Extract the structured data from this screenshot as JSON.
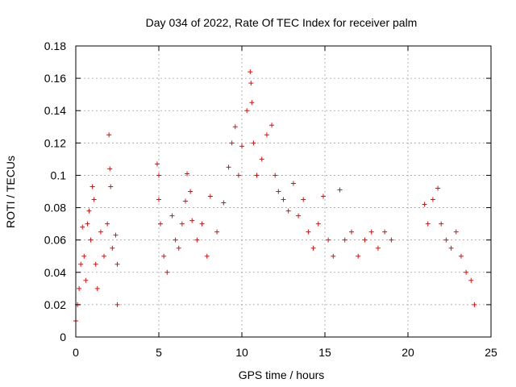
{
  "chart_data": {
    "type": "scatter",
    "title": "Day 034 of 2022, Rate Of TEC Index for receiver palm",
    "xlabel": "GPS time / hours",
    "ylabel": "ROTI / TECUs",
    "xlim": [
      0,
      25
    ],
    "ylim": [
      0,
      0.18
    ],
    "xticks": [
      "0",
      "5",
      "10",
      "15",
      "20",
      "25"
    ],
    "yticks": [
      "0",
      "0.02",
      "0.04",
      "0.06",
      "0.08",
      "0.1",
      "0.12",
      "0.14",
      "0.16",
      "0.18"
    ],
    "xtick_values": [
      0,
      5,
      10,
      15,
      20,
      25
    ],
    "ytick_values": [
      0,
      0.02,
      0.04,
      0.06,
      0.08,
      0.1,
      0.12,
      0.14,
      0.16,
      0.18
    ],
    "grid": true,
    "marker": "+",
    "color": "#ff0000",
    "series": [
      {
        "points": [
          [
            0.0,
            0.01
          ],
          [
            0.1,
            0.02
          ],
          [
            0.2,
            0.03
          ],
          [
            0.3,
            0.045
          ],
          [
            0.4,
            0.068
          ],
          [
            0.5,
            0.05
          ],
          [
            0.6,
            0.035
          ],
          [
            0.7,
            0.07
          ],
          [
            0.8,
            0.078
          ],
          [
            0.9,
            0.06
          ],
          [
            1.0,
            0.093
          ],
          [
            1.1,
            0.085
          ],
          [
            1.2,
            0.045
          ],
          [
            1.3,
            0.03
          ],
          [
            1.5,
            0.065
          ],
          [
            1.7,
            0.05
          ],
          [
            1.9,
            0.07
          ],
          [
            2.0,
            0.125
          ],
          [
            2.05,
            0.104
          ],
          [
            2.1,
            0.093
          ],
          [
            2.2,
            0.055
          ],
          [
            2.4,
            0.063
          ],
          [
            2.5,
            0.045
          ],
          [
            2.5,
            0.02
          ],
          [
            4.9,
            0.107
          ],
          [
            5.0,
            0.1
          ],
          [
            5.0,
            0.085
          ],
          [
            5.1,
            0.07
          ],
          [
            5.3,
            0.05
          ],
          [
            5.5,
            0.04
          ],
          [
            5.8,
            0.075
          ],
          [
            6.0,
            0.06
          ],
          [
            6.2,
            0.055
          ],
          [
            6.4,
            0.07
          ],
          [
            6.6,
            0.084
          ],
          [
            6.7,
            0.101
          ],
          [
            6.9,
            0.09
          ],
          [
            7.0,
            0.072
          ],
          [
            7.3,
            0.06
          ],
          [
            7.6,
            0.07
          ],
          [
            7.9,
            0.05
          ],
          [
            8.1,
            0.087
          ],
          [
            8.5,
            0.065
          ],
          [
            8.9,
            0.083
          ],
          [
            9.2,
            0.105
          ],
          [
            9.4,
            0.12
          ],
          [
            9.6,
            0.13
          ],
          [
            9.8,
            0.1
          ],
          [
            10.0,
            0.118
          ],
          [
            10.3,
            0.14
          ],
          [
            10.5,
            0.164
          ],
          [
            10.55,
            0.157
          ],
          [
            10.6,
            0.145
          ],
          [
            10.7,
            0.12
          ],
          [
            10.9,
            0.1
          ],
          [
            11.2,
            0.11
          ],
          [
            11.5,
            0.125
          ],
          [
            11.8,
            0.131
          ],
          [
            12.0,
            0.1
          ],
          [
            12.2,
            0.09
          ],
          [
            12.5,
            0.085
          ],
          [
            12.8,
            0.078
          ],
          [
            13.1,
            0.095
          ],
          [
            13.4,
            0.075
          ],
          [
            13.7,
            0.085
          ],
          [
            14.0,
            0.065
          ],
          [
            14.3,
            0.055
          ],
          [
            14.6,
            0.07
          ],
          [
            14.9,
            0.087
          ],
          [
            15.2,
            0.06
          ],
          [
            15.5,
            0.05
          ],
          [
            15.9,
            0.091
          ],
          [
            16.2,
            0.06
          ],
          [
            16.6,
            0.065
          ],
          [
            17.0,
            0.05
          ],
          [
            17.4,
            0.06
          ],
          [
            17.8,
            0.065
          ],
          [
            18.2,
            0.055
          ],
          [
            18.6,
            0.065
          ],
          [
            19.0,
            0.06
          ],
          [
            21.0,
            0.082
          ],
          [
            21.2,
            0.07
          ],
          [
            21.5,
            0.085
          ],
          [
            21.8,
            0.092
          ],
          [
            22.0,
            0.07
          ],
          [
            22.3,
            0.06
          ],
          [
            22.6,
            0.055
          ],
          [
            22.9,
            0.065
          ],
          [
            23.2,
            0.05
          ],
          [
            23.5,
            0.04
          ],
          [
            23.8,
            0.035
          ],
          [
            24.0,
            0.02
          ]
        ]
      }
    ]
  }
}
